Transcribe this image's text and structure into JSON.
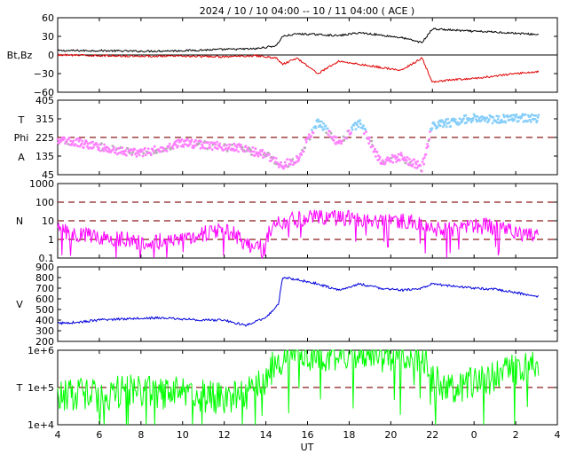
{
  "title": "2024 / 10 / 10   04:00 -- 10 / 11   04:00 ( ACE )",
  "xlabel": "UT",
  "x_ticks": [
    "4",
    "6",
    "8",
    "10",
    "12",
    "14",
    "16",
    "18",
    "20",
    "22",
    "0",
    "2",
    "4"
  ],
  "colors": {
    "bt": "#000000",
    "bz": "#e00000",
    "phi_away": "#87cefa",
    "phi_toward": "#ff80ff",
    "phi_other": "#b0b0b0",
    "density": "#ff00ff",
    "speed": "#0000dd",
    "temperature": "#00ff00",
    "reference": "#8b1a1a"
  },
  "chart_data": [
    {
      "type": "line",
      "panel": "magnetic-field",
      "ylabel": "Bt,Bz",
      "ylim": [
        -60,
        60
      ],
      "yticks": [
        "60",
        "30",
        "0",
        "−30",
        "−60"
      ],
      "series": [
        {
          "name": "Bt",
          "x": [
            4,
            6,
            8,
            10,
            12,
            13.5,
            14.5,
            14.8,
            15.5,
            16.5,
            17.5,
            18.5,
            19.5,
            20.5,
            21.5,
            22,
            23,
            0,
            1,
            2,
            3
          ],
          "values": [
            7,
            7,
            6,
            7,
            9,
            10,
            15,
            30,
            34,
            33,
            31,
            36,
            32,
            28,
            20,
            42,
            40,
            38,
            37,
            35,
            33
          ]
        },
        {
          "name": "Bz",
          "x": [
            4,
            6,
            8,
            10,
            12,
            13.5,
            14.5,
            14.8,
            15.5,
            16.5,
            17.5,
            18.5,
            19.5,
            20.5,
            21.5,
            22,
            23,
            0,
            1,
            2,
            3
          ],
          "values": [
            0,
            -1,
            -2,
            -2,
            -3,
            -1,
            -5,
            -15,
            -5,
            -30,
            -10,
            -15,
            -20,
            -25,
            -5,
            -44,
            -40,
            -38,
            -34,
            -30,
            -27
          ]
        }
      ],
      "reference_lines": [
        0
      ]
    },
    {
      "type": "scatter",
      "panel": "phi-angle",
      "ylabel_top": "T",
      "ylabel_mid": "Phi",
      "ylabel_bottom": "A",
      "ylim": [
        45,
        405
      ],
      "yticks": [
        "405",
        "315",
        "225",
        "135",
        "45"
      ],
      "series": [
        {
          "x": [
            4.0,
            5.0,
            6.0,
            7.0,
            8.0,
            9.0,
            10.0,
            11.0,
            12.0,
            13.0,
            14.0,
            14.8,
            15.5,
            16.5,
            17.5,
            18.5,
            19.5,
            20.5,
            21.5,
            22.0,
            23.0,
            0.0,
            1.0,
            2.0,
            3.0
          ],
          "values": [
            210,
            200,
            180,
            160,
            150,
            170,
            200,
            190,
            180,
            170,
            140,
            90,
            120,
            300,
            200,
            300,
            110,
            130,
            80,
            280,
            300,
            320,
            310,
            320,
            315
          ]
        }
      ],
      "reference_lines": [
        225
      ]
    },
    {
      "type": "line",
      "panel": "density",
      "ylabel": "N",
      "yscale": "log",
      "ylim": [
        0.1,
        1000
      ],
      "yticks": [
        "1000",
        "100",
        "10",
        "1",
        "0.1"
      ],
      "series": [
        {
          "x": [
            4,
            5,
            6,
            7,
            8,
            9,
            10,
            11,
            12,
            13,
            14,
            14.8,
            15.5,
            16.5,
            17.5,
            18.5,
            19.5,
            20.5,
            21.5,
            22.5,
            23.5,
            0.5,
            1.5,
            2.5,
            3
          ],
          "values": [
            3,
            2,
            1.5,
            1,
            0.7,
            0.8,
            1.2,
            2,
            3,
            0.5,
            0.3,
            10,
            12,
            15,
            14,
            12,
            8,
            9,
            6,
            3,
            4,
            5,
            3,
            2,
            1.5
          ]
        }
      ],
      "reference_lines": [
        100,
        10,
        1
      ]
    },
    {
      "type": "line",
      "panel": "speed",
      "ylabel": "V",
      "ylim": [
        200,
        900
      ],
      "yticks": [
        "900",
        "800",
        "700",
        "600",
        "500",
        "400",
        "300",
        "200"
      ],
      "series": [
        {
          "x": [
            4,
            5,
            6,
            7,
            8,
            9,
            10,
            11,
            12,
            13,
            14,
            14.6,
            14.8,
            15.5,
            16.5,
            17.5,
            18.5,
            19.5,
            20.5,
            21.5,
            22,
            23,
            0,
            1,
            2,
            3
          ],
          "values": [
            370,
            380,
            400,
            410,
            420,
            420,
            410,
            400,
            400,
            350,
            420,
            550,
            800,
            780,
            740,
            680,
            740,
            700,
            680,
            700,
            740,
            720,
            700,
            690,
            660,
            620
          ]
        }
      ]
    },
    {
      "type": "line",
      "panel": "temperature",
      "ylabel": "T",
      "yscale": "log",
      "ylim": [
        10000,
        1000000
      ],
      "yticks": [
        "1e+6",
        "1e+5",
        "1e+4"
      ],
      "series": [
        {
          "x": [
            4,
            5,
            6,
            7,
            8,
            9,
            10,
            11,
            12,
            13,
            14,
            14.8,
            15.5,
            16.5,
            17.5,
            18.5,
            19.5,
            20.5,
            21.5,
            22,
            23,
            0,
            1,
            2,
            3
          ],
          "values": [
            60000,
            70000,
            60000,
            80000,
            90000,
            70000,
            70000,
            60000,
            50000,
            60000,
            150000,
            600000,
            900000,
            700000,
            800000,
            900000,
            700000,
            800000,
            700000,
            150000,
            100000,
            130000,
            200000,
            300000,
            350000
          ]
        }
      ],
      "reference_lines": [
        100000
      ]
    }
  ]
}
